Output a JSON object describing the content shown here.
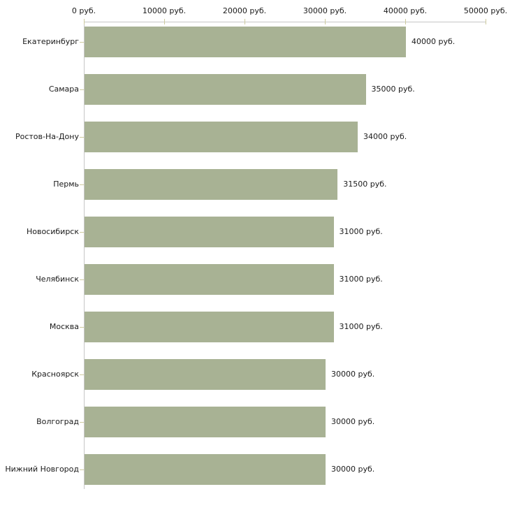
{
  "chart_data": {
    "type": "bar",
    "orientation": "horizontal",
    "title": "",
    "xlabel": "",
    "ylabel": "",
    "grid": false,
    "legend": false,
    "categories": [
      "Екатеринбург",
      "Самара",
      "Ростов-На-Дону",
      "Пермь",
      "Новосибирск",
      "Челябинск",
      "Москва",
      "Красноярск",
      "Волгоград",
      "Нижний Новгород"
    ],
    "values": [
      40000,
      35000,
      34000,
      31500,
      31000,
      31000,
      31000,
      30000,
      30000,
      30000
    ],
    "value_labels": [
      "40000 руб.",
      "35000 руб.",
      "34000 руб.",
      "31500 руб.",
      "31000 руб.",
      "31000 руб.",
      "31000 руб.",
      "30000 руб.",
      "30000 руб.",
      "30000 руб."
    ],
    "x_axis": {
      "position": "top",
      "range": [
        0,
        50000
      ],
      "ticks": [
        0,
        10000,
        20000,
        30000,
        40000,
        50000
      ],
      "tick_labels": [
        "0 руб.",
        "10000 руб.",
        "20000 руб.",
        "30000 руб.",
        "40000 руб.",
        "50000 руб."
      ],
      "unit": "руб."
    },
    "colors": {
      "bar": "#a8b294",
      "axis_line": "#c6c6c6",
      "tick": "#cecb9e",
      "text": "#1a1a1a",
      "background": "#ffffff"
    }
  }
}
